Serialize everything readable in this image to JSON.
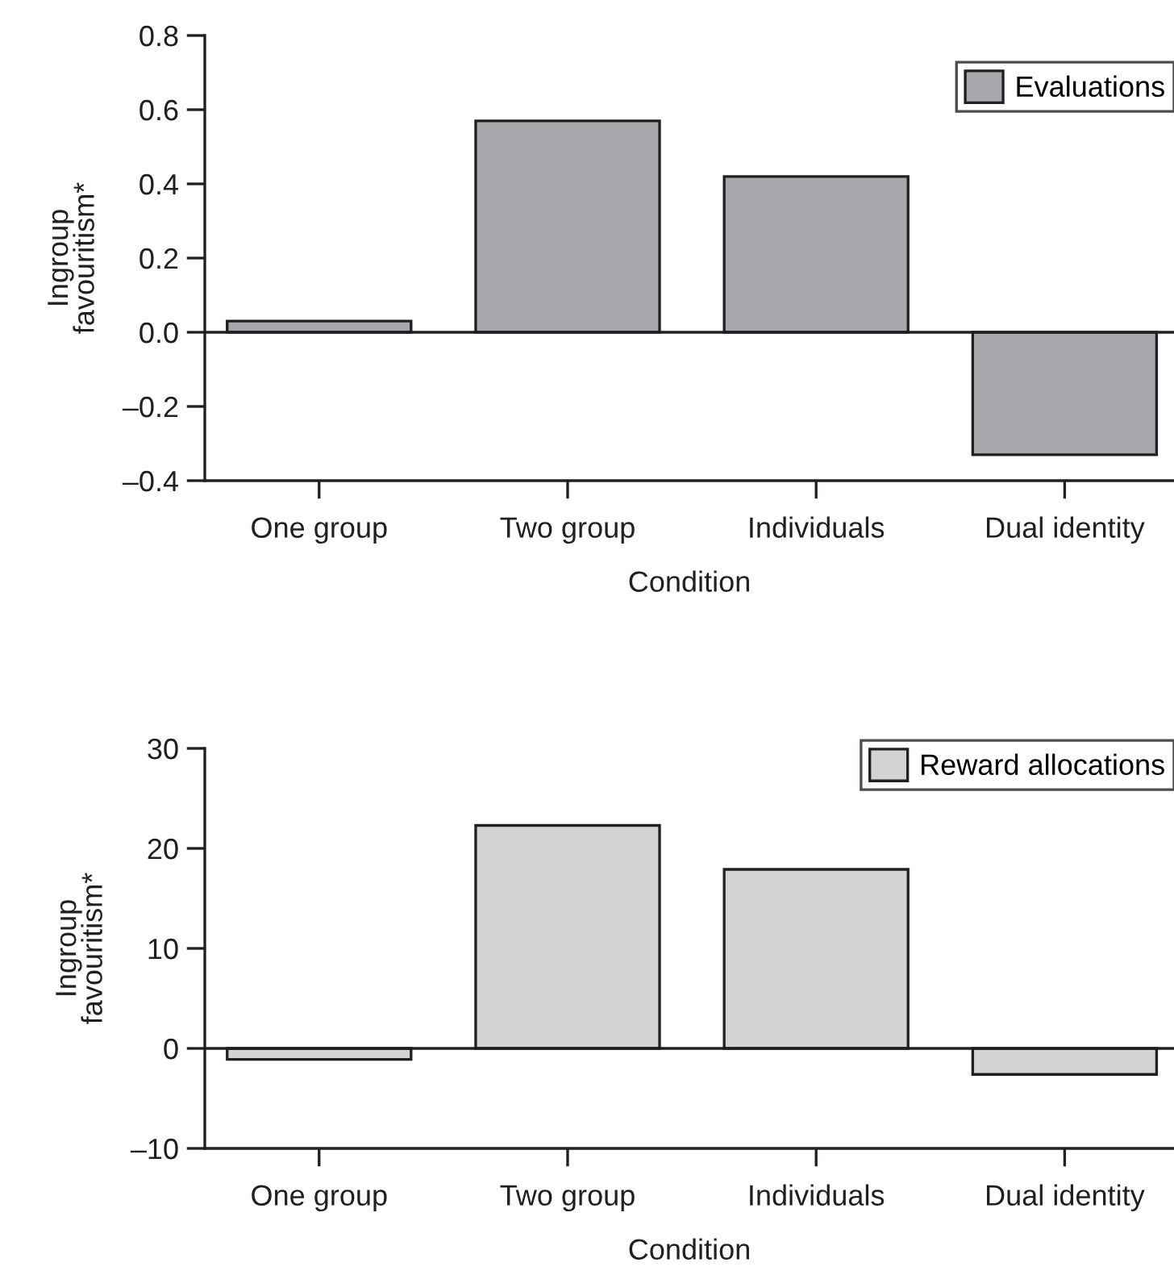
{
  "chart_data": [
    {
      "type": "bar",
      "xlabel": "Condition",
      "ylabel": "Ingroup\nfavouritism*",
      "categories": [
        "One group",
        "Two group",
        "Individuals",
        "Dual identity"
      ],
      "series": [
        {
          "name": "Evaluations",
          "color": "#a7a8ab",
          "values": [
            0.03,
            0.57,
            0.42,
            -0.33
          ]
        }
      ],
      "ylim": [
        -0.4,
        0.8
      ],
      "yticks": [
        {
          "value": -0.4,
          "label": "–0.4"
        },
        {
          "value": -0.2,
          "label": "–0.2"
        },
        {
          "value": 0.0,
          "label": "0.0"
        },
        {
          "value": 0.2,
          "label": "0.2"
        },
        {
          "value": 0.4,
          "label": "0.4"
        },
        {
          "value": 0.6,
          "label": "0.6"
        },
        {
          "value": 0.8,
          "label": "0.8"
        }
      ],
      "ref_lines": [
        {
          "axis": "y",
          "value": 0,
          "label": null,
          "color": "#231f20"
        }
      ],
      "legend": "top right",
      "grid": false
    },
    {
      "type": "bar",
      "xlabel": "Condition",
      "ylabel": "Ingroup\nfavouritism*",
      "categories": [
        "One group",
        "Two group",
        "Individuals",
        "Dual identity"
      ],
      "series": [
        {
          "name": "Reward allocations",
          "color": "#d2d3d5",
          "values": [
            -1.1,
            22.3,
            17.9,
            -2.6
          ]
        }
      ],
      "ylim": [
        -10,
        30
      ],
      "yticks": [
        {
          "value": -10,
          "label": "–10"
        },
        {
          "value": 0,
          "label": "0"
        },
        {
          "value": 10,
          "label": "10"
        },
        {
          "value": 20,
          "label": "20"
        },
        {
          "value": 30,
          "label": "30"
        }
      ],
      "ref_lines": [
        {
          "axis": "y",
          "value": 0,
          "label": null,
          "color": "#231f20"
        }
      ],
      "legend": "top right",
      "grid": false
    }
  ]
}
